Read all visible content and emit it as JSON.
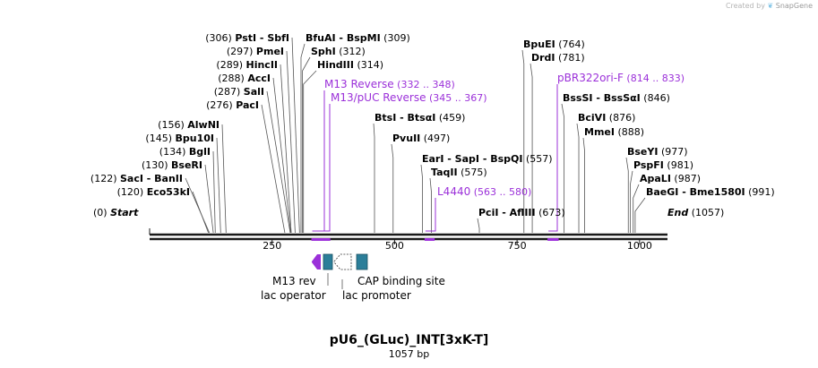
{
  "credit": {
    "prefix": "Created by",
    "brand": "SnapGene",
    "icon": "snapgene-leaf-icon"
  },
  "map": {
    "title": "pU6_(GLuc)_INT[3xK-T]",
    "subtitle": "1057 bp",
    "length": 1057,
    "axis_ticks": [
      250,
      500,
      750,
      1000
    ],
    "colors": {
      "backbone": "#1a1a1a",
      "primer": "#9b30d9",
      "feature_teal": "#2b7e99",
      "protein_bind": "#ffffff"
    }
  },
  "sites": [
    {
      "id": "start",
      "name": "Start",
      "pos": "(0)",
      "bp": 0,
      "italic": true,
      "side": "right"
    },
    {
      "id": "eco53ki",
      "name": "Eco53kI",
      "pos": "(120)",
      "bp": 120,
      "side": "left"
    },
    {
      "id": "saci",
      "name": "SacI  -  BanII",
      "pos": "(122)",
      "bp": 122,
      "side": "left"
    },
    {
      "id": "bseri",
      "name": "BseRI",
      "pos": "(130)",
      "bp": 130,
      "side": "left"
    },
    {
      "id": "bgli",
      "name": "BglI",
      "pos": "(134)",
      "bp": 134,
      "side": "left"
    },
    {
      "id": "bpu10i",
      "name": "Bpu10I",
      "pos": "(145)",
      "bp": 145,
      "side": "left"
    },
    {
      "id": "alwni",
      "name": "AlwNI",
      "pos": "(156)",
      "bp": 156,
      "side": "left"
    },
    {
      "id": "paci",
      "name": "PacI",
      "pos": "(276)",
      "bp": 276,
      "side": "left"
    },
    {
      "id": "sali",
      "name": "SalI",
      "pos": "(287)",
      "bp": 287,
      "side": "left"
    },
    {
      "id": "acci",
      "name": "AccI",
      "pos": "(288)",
      "bp": 288,
      "side": "left"
    },
    {
      "id": "hincii",
      "name": "HincII",
      "pos": "(289)",
      "bp": 289,
      "side": "left"
    },
    {
      "id": "pmei",
      "name": "PmeI",
      "pos": "(297)",
      "bp": 297,
      "side": "left"
    },
    {
      "id": "psti",
      "name": "PstI  -  SbfI",
      "pos": "(306)",
      "bp": 306,
      "side": "left"
    },
    {
      "id": "bfuai",
      "name": "BfuAI  -  BspMI",
      "pos": "(309)",
      "bp": 309,
      "side": "right"
    },
    {
      "id": "sphi",
      "name": "SphI",
      "pos": "(312)",
      "bp": 312,
      "side": "right"
    },
    {
      "id": "hindiii",
      "name": "HindIII",
      "pos": "(314)",
      "bp": 314,
      "side": "right"
    },
    {
      "id": "btsi",
      "name": "BtsI  -  BtsαI",
      "pos": "(459)",
      "bp": 459,
      "side": "right"
    },
    {
      "id": "pvuii",
      "name": "PvuII",
      "pos": "(497)",
      "bp": 497,
      "side": "right"
    },
    {
      "id": "eari",
      "name": "EarI  -  SapI  -  BspQI",
      "pos": "(557)",
      "bp": 557,
      "side": "right"
    },
    {
      "id": "taqii",
      "name": "TaqII",
      "pos": "(575)",
      "bp": 575,
      "side": "right"
    },
    {
      "id": "pcii",
      "name": "PciI  -  AflIII",
      "pos": "(673)",
      "bp": 673,
      "side": "right"
    },
    {
      "id": "bpuei",
      "name": "BpuEI",
      "pos": "(764)",
      "bp": 764,
      "side": "right"
    },
    {
      "id": "drdi",
      "name": "DrdI",
      "pos": "(781)",
      "bp": 781,
      "side": "right"
    },
    {
      "id": "bsssi",
      "name": "BssSI  -  BssSαI",
      "pos": "(846)",
      "bp": 846,
      "side": "right"
    },
    {
      "id": "bcivi",
      "name": "BciVI",
      "pos": "(876)",
      "bp": 876,
      "side": "right"
    },
    {
      "id": "mmei",
      "name": "MmeI",
      "pos": "(888)",
      "bp": 888,
      "side": "right"
    },
    {
      "id": "bseyi",
      "name": "BseYI",
      "pos": "(977)",
      "bp": 977,
      "side": "right"
    },
    {
      "id": "pspfi",
      "name": "PspFI",
      "pos": "(981)",
      "bp": 981,
      "side": "right"
    },
    {
      "id": "apali",
      "name": "ApaLI",
      "pos": "(987)",
      "bp": 987,
      "side": "right"
    },
    {
      "id": "baegi",
      "name": "BaeGI  -  Bme1580I",
      "pos": "(991)",
      "bp": 991,
      "side": "right"
    },
    {
      "id": "end",
      "name": "End",
      "pos": "(1057)",
      "bp": 1057,
      "italic": true,
      "side": "right"
    }
  ],
  "primers": [
    {
      "id": "m13-reverse",
      "name": "M13 Reverse",
      "range": "(332 .. 348)",
      "start": 332,
      "end": 348
    },
    {
      "id": "m13-puc-reverse",
      "name": "M13/pUC Reverse",
      "range": "(345 .. 367)",
      "start": 345,
      "end": 367
    },
    {
      "id": "l4440",
      "name": "L4440",
      "range": "(563 .. 580)",
      "start": 563,
      "end": 580
    },
    {
      "id": "pbr322ori-f",
      "name": "pBR322ori-F",
      "range": "(814 .. 833)",
      "start": 814,
      "end": 833
    }
  ],
  "features": [
    {
      "id": "m13-rev",
      "name": "M13 rev",
      "type": "primer_bind"
    },
    {
      "id": "lac-operator",
      "name": "lac operator",
      "type": "protein_bind"
    },
    {
      "id": "lac-promoter",
      "name": "lac promoter",
      "type": "promoter"
    },
    {
      "id": "cap-binding-site",
      "name": "CAP binding site",
      "type": "protein_bind"
    }
  ]
}
